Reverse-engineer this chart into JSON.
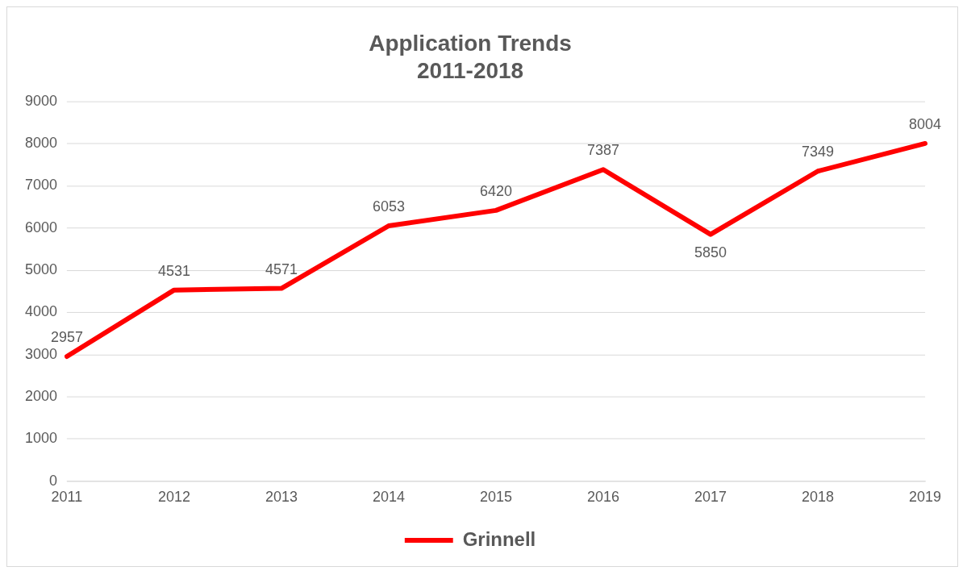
{
  "chart_data": {
    "type": "line",
    "title": "Application Trends\n2011-2018",
    "categories": [
      "2011",
      "2012",
      "2013",
      "2014",
      "2015",
      "2016",
      "2017",
      "2018",
      "2019"
    ],
    "series": [
      {
        "name": "Grinnell",
        "color": "#ff0000",
        "values": [
          2957,
          4531,
          4571,
          6053,
          6420,
          7387,
          5850,
          7349,
          8004
        ]
      }
    ],
    "ylim": [
      0,
      9000
    ],
    "yticks": [
      0,
      1000,
      2000,
      3000,
      4000,
      5000,
      6000,
      7000,
      8000,
      9000
    ],
    "grid": "y",
    "legend": "bottom",
    "marker": "none",
    "line_style": "solid",
    "data_labels": true
  }
}
